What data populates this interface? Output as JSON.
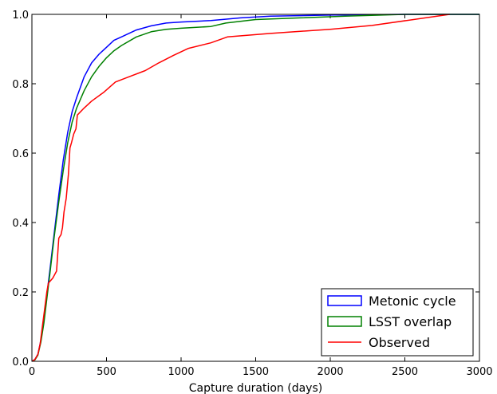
{
  "chart_data": {
    "type": "line",
    "title": "",
    "xlabel": "Capture duration (days)",
    "ylabel": "",
    "xlim": [
      0,
      3000
    ],
    "ylim": [
      0.0,
      1.0
    ],
    "x_ticks": [
      0,
      500,
      1000,
      1500,
      2000,
      2500,
      3000
    ],
    "y_ticks": [
      0.0,
      0.2,
      0.4,
      0.6,
      0.8,
      1.0
    ],
    "x_tick_labels": [
      "0",
      "500",
      "1000",
      "1500",
      "2000",
      "2500",
      "3000"
    ],
    "y_tick_labels": [
      "0.0",
      "0.2",
      "0.4",
      "0.6",
      "0.8",
      "1.0"
    ],
    "grid": false,
    "legend_position": "bottom-right",
    "series": [
      {
        "name": "Metonic cycle",
        "legend_style": "box",
        "color": "#0000ff",
        "points": [
          [
            0,
            0
          ],
          [
            20,
            0.005
          ],
          [
            40,
            0.02
          ],
          [
            60,
            0.06
          ],
          [
            80,
            0.12
          ],
          [
            100,
            0.19
          ],
          [
            120,
            0.26
          ],
          [
            150,
            0.37
          ],
          [
            180,
            0.48
          ],
          [
            210,
            0.58
          ],
          [
            240,
            0.66
          ],
          [
            270,
            0.72
          ],
          [
            300,
            0.76
          ],
          [
            350,
            0.82
          ],
          [
            400,
            0.86
          ],
          [
            450,
            0.885
          ],
          [
            500,
            0.905
          ],
          [
            550,
            0.925
          ],
          [
            600,
            0.935
          ],
          [
            700,
            0.955
          ],
          [
            800,
            0.967
          ],
          [
            900,
            0.975
          ],
          [
            1000,
            0.978
          ],
          [
            1200,
            0.982
          ],
          [
            1400,
            0.99
          ],
          [
            1600,
            0.995
          ],
          [
            2000,
            0.998
          ],
          [
            2500,
            1.0
          ],
          [
            3000,
            1.0
          ]
        ]
      },
      {
        "name": "LSST overlap",
        "legend_style": "box",
        "color": "#008000",
        "points": [
          [
            0,
            0
          ],
          [
            20,
            0.004
          ],
          [
            40,
            0.018
          ],
          [
            60,
            0.055
          ],
          [
            80,
            0.11
          ],
          [
            100,
            0.18
          ],
          [
            120,
            0.25
          ],
          [
            150,
            0.36
          ],
          [
            180,
            0.46
          ],
          [
            210,
            0.55
          ],
          [
            240,
            0.63
          ],
          [
            270,
            0.69
          ],
          [
            300,
            0.73
          ],
          [
            350,
            0.78
          ],
          [
            400,
            0.82
          ],
          [
            450,
            0.85
          ],
          [
            500,
            0.875
          ],
          [
            550,
            0.895
          ],
          [
            600,
            0.91
          ],
          [
            700,
            0.935
          ],
          [
            800,
            0.95
          ],
          [
            900,
            0.957
          ],
          [
            1000,
            0.96
          ],
          [
            1200,
            0.965
          ],
          [
            1300,
            0.975
          ],
          [
            1500,
            0.985
          ],
          [
            1800,
            0.99
          ],
          [
            2100,
            0.995
          ],
          [
            2500,
            1.0
          ],
          [
            3000,
            1.0
          ]
        ]
      },
      {
        "name": "Observed",
        "legend_style": "line",
        "color": "#ff0000",
        "points": [
          [
            0,
            0
          ],
          [
            20,
            0.005
          ],
          [
            40,
            0.02
          ],
          [
            55,
            0.05
          ],
          [
            70,
            0.1
          ],
          [
            85,
            0.15
          ],
          [
            100,
            0.2
          ],
          [
            110,
            0.225
          ],
          [
            140,
            0.24
          ],
          [
            165,
            0.26
          ],
          [
            180,
            0.355
          ],
          [
            195,
            0.365
          ],
          [
            205,
            0.385
          ],
          [
            215,
            0.43
          ],
          [
            230,
            0.47
          ],
          [
            245,
            0.54
          ],
          [
            255,
            0.615
          ],
          [
            265,
            0.63
          ],
          [
            280,
            0.655
          ],
          [
            295,
            0.67
          ],
          [
            305,
            0.71
          ],
          [
            350,
            0.73
          ],
          [
            400,
            0.75
          ],
          [
            480,
            0.775
          ],
          [
            560,
            0.805
          ],
          [
            650,
            0.82
          ],
          [
            760,
            0.838
          ],
          [
            850,
            0.86
          ],
          [
            950,
            0.882
          ],
          [
            1050,
            0.902
          ],
          [
            1200,
            0.918
          ],
          [
            1310,
            0.935
          ],
          [
            1600,
            0.945
          ],
          [
            2000,
            0.957
          ],
          [
            2280,
            0.968
          ],
          [
            2800,
            1.0
          ]
        ]
      }
    ]
  }
}
